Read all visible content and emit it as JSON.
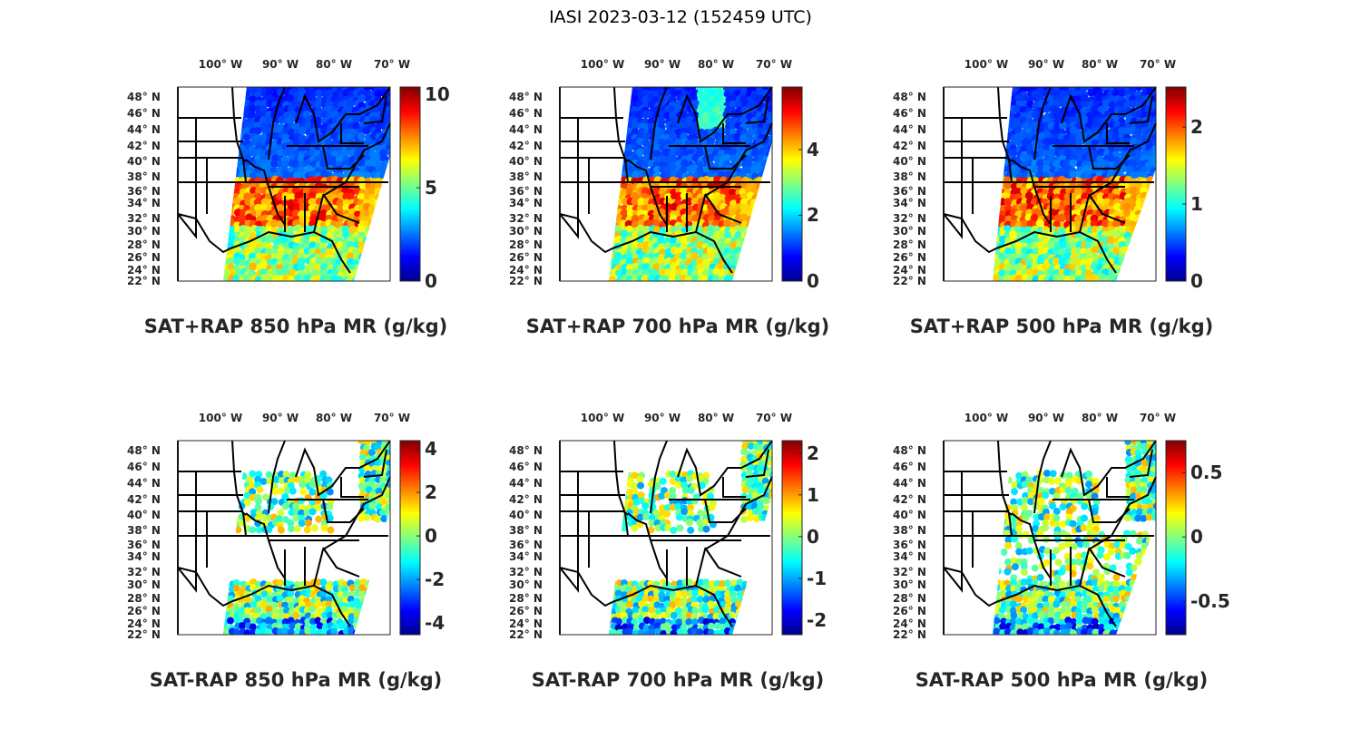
{
  "figure_title": "IASI 2023-03-12 (152459 UTC)",
  "lon_labels": [
    "100° W",
    "90° W",
    "80° W",
    "70° W"
  ],
  "lat_labels": [
    "48° N",
    "46° N",
    "44° N",
    "42° N",
    "40° N",
    "38° N",
    "36° N",
    "34° N",
    "32° N",
    "30° N",
    "28° N",
    "26° N",
    "24° N",
    "22° N"
  ],
  "colormap": [
    "#00008f",
    "#0000ff",
    "#0080ff",
    "#00ffff",
    "#80ff80",
    "#ffff00",
    "#ff8000",
    "#ff0000",
    "#800000"
  ],
  "panels": [
    {
      "title": "SAT+RAP 850 hPa MR (g/kg)",
      "cmin": 0,
      "cmax": 10.4,
      "ticks": [
        0,
        5,
        10
      ],
      "tick_labels": [
        "0",
        "5",
        "10"
      ],
      "kind": "total"
    },
    {
      "title": "SAT+RAP 700 hPa MR (g/kg)",
      "cmin": 0,
      "cmax": 5.9,
      "ticks": [
        0,
        2,
        4
      ],
      "tick_labels": [
        "0",
        "2",
        "4"
      ],
      "kind": "total"
    },
    {
      "title": "SAT+RAP 500 hPa MR (g/kg)",
      "cmin": 0,
      "cmax": 2.52,
      "ticks": [
        0,
        1,
        2
      ],
      "tick_labels": [
        "0",
        "1",
        "2"
      ],
      "kind": "total"
    },
    {
      "title": "SAT-RAP 850 hPa MR (g/kg)",
      "cmin": -4.54,
      "cmax": 4.38,
      "ticks": [
        -4,
        -2,
        0,
        2,
        4
      ],
      "tick_labels": [
        "-4",
        "-2",
        "0",
        "2",
        "4"
      ],
      "kind": "diff"
    },
    {
      "title": "SAT-RAP 700 hPa MR (g/kg)",
      "cmin": -2.35,
      "cmax": 2.3,
      "ticks": [
        -2,
        -1,
        0,
        1,
        2
      ],
      "tick_labels": [
        "-2",
        "-1",
        "0",
        "1",
        "2"
      ],
      "kind": "diff"
    },
    {
      "title": "SAT-RAP 500 hPa MR (g/kg)",
      "cmin": -0.76,
      "cmax": 0.75,
      "ticks": [
        -0.5,
        0,
        0.5
      ],
      "tick_labels": [
        "-0.5",
        "0",
        "0.5"
      ],
      "kind": "diff"
    }
  ]
}
